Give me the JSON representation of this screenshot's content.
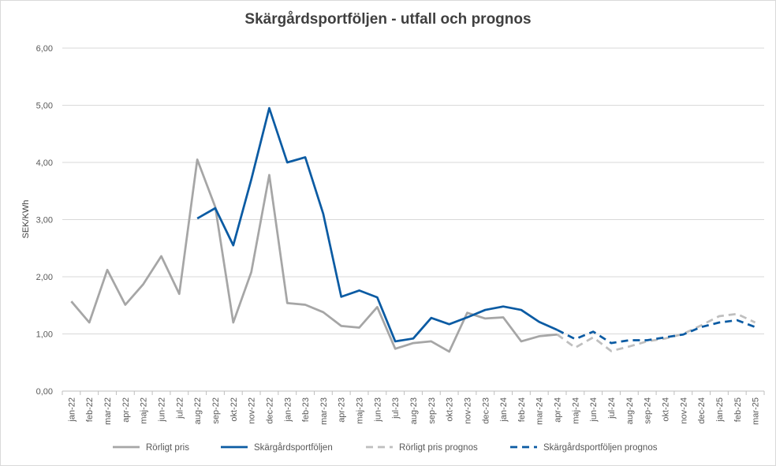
{
  "chart_data": {
    "type": "line",
    "title": "Skärgårdsportföljen - utfall och prognos",
    "xlabel": "",
    "ylabel": "SEK/KWh",
    "ylim": [
      0,
      6
    ],
    "y_ticks": [
      "0,00",
      "1,00",
      "2,00",
      "3,00",
      "4,00",
      "5,00",
      "6,00"
    ],
    "grid": true,
    "legend_position": "bottom",
    "categories": [
      "jan-22",
      "feb-22",
      "mar-22",
      "apr-22",
      "maj-22",
      "jun-22",
      "jul-22",
      "aug-22",
      "sep-22",
      "okt-22",
      "nov-22",
      "dec-22",
      "jan-23",
      "feb-23",
      "mar-23",
      "apr-23",
      "maj-23",
      "jun-23",
      "jul-23",
      "aug-23",
      "sep-23",
      "okt-23",
      "nov-23",
      "dec-23",
      "jan-24",
      "feb-24",
      "mar-24",
      "apr-24",
      "maj-24",
      "jun-24",
      "jul-24",
      "aug-24",
      "sep-24",
      "okt-24",
      "nov-24",
      "dec-24",
      "jan-25",
      "feb-25",
      "mar-25"
    ],
    "series": [
      {
        "name": "Rörligt pris",
        "color": "#a6a6a6",
        "dashed": false,
        "values": [
          1.57,
          1.2,
          2.12,
          1.51,
          1.87,
          2.36,
          1.7,
          4.05,
          3.22,
          1.2,
          2.08,
          3.78,
          1.54,
          1.51,
          1.38,
          1.14,
          1.11,
          1.47,
          0.74,
          0.84,
          0.87,
          0.69,
          1.37,
          1.27,
          1.29,
          0.87,
          0.96,
          0.99,
          null,
          null,
          null,
          null,
          null,
          null,
          null,
          null,
          null,
          null,
          null
        ]
      },
      {
        "name": "Skärgårdsportföljen",
        "color": "#0b5ba3",
        "dashed": false,
        "values": [
          null,
          null,
          null,
          null,
          null,
          null,
          null,
          3.02,
          3.2,
          2.55,
          3.7,
          4.95,
          4.0,
          4.09,
          3.1,
          1.65,
          1.76,
          1.64,
          0.87,
          0.92,
          1.28,
          1.17,
          1.29,
          1.42,
          1.48,
          1.42,
          1.21,
          1.07,
          null,
          null,
          null,
          null,
          null,
          null,
          null,
          null,
          null,
          null,
          null
        ]
      },
      {
        "name": "Rörligt pris prognos",
        "color": "#bfbfbf",
        "dashed": true,
        "values": [
          null,
          null,
          null,
          null,
          null,
          null,
          null,
          null,
          null,
          null,
          null,
          null,
          null,
          null,
          null,
          null,
          null,
          null,
          null,
          null,
          null,
          null,
          null,
          null,
          null,
          null,
          null,
          0.99,
          0.76,
          0.94,
          0.7,
          0.78,
          0.87,
          0.92,
          1.0,
          1.15,
          1.31,
          1.35,
          1.2
        ]
      },
      {
        "name": "Skärgårdsportföljen prognos",
        "color": "#0b5ba3",
        "dashed": true,
        "values": [
          null,
          null,
          null,
          null,
          null,
          null,
          null,
          null,
          null,
          null,
          null,
          null,
          null,
          null,
          null,
          null,
          null,
          null,
          null,
          null,
          null,
          null,
          null,
          null,
          null,
          null,
          null,
          1.07,
          0.91,
          1.04,
          0.84,
          0.89,
          0.89,
          0.94,
          0.99,
          1.12,
          1.2,
          1.24,
          1.12
        ]
      }
    ]
  }
}
